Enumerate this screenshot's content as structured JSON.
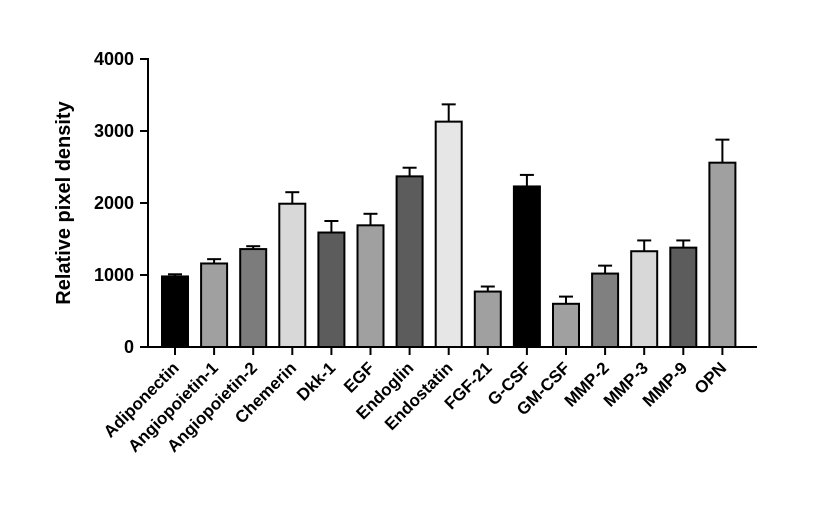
{
  "chart_data": {
    "type": "bar",
    "title": "",
    "xlabel": "",
    "ylabel": "Relative pixel density",
    "ylim": [
      0,
      4000
    ],
    "yticks": [
      0,
      1000,
      2000,
      3000,
      4000
    ],
    "grid": false,
    "legend": "none",
    "categories": [
      "Adiponectin",
      "Angiopoietin-1",
      "Angiopoietin-2",
      "Chemerin",
      "Dkk-1",
      "EGF",
      "Endoglin",
      "Endostatin",
      "FGF-21",
      "G-CSF",
      "GM-CSF",
      "MMP-2",
      "MMP-3",
      "MMP-9",
      "OPN"
    ],
    "series": [
      {
        "values": [
          980,
          1160,
          1360,
          1990,
          1590,
          1690,
          2370,
          3130,
          770,
          2230,
          600,
          1020,
          1330,
          1380,
          2560
        ],
        "errors": [
          30,
          60,
          40,
          160,
          160,
          160,
          120,
          240,
          70,
          160,
          100,
          110,
          150,
          100,
          320
        ],
        "colors": [
          "#000000",
          "#a0a0a0",
          "#7c7c7c",
          "#d8d8d8",
          "#5c5c5c",
          "#a0a0a0",
          "#5c5c5c",
          "#e6e6e6",
          "#a0a0a0",
          "#000000",
          "#a0a0a0",
          "#808080",
          "#d8d8d8",
          "#5c5c5c",
          "#a0a0a0"
        ]
      }
    ]
  }
}
